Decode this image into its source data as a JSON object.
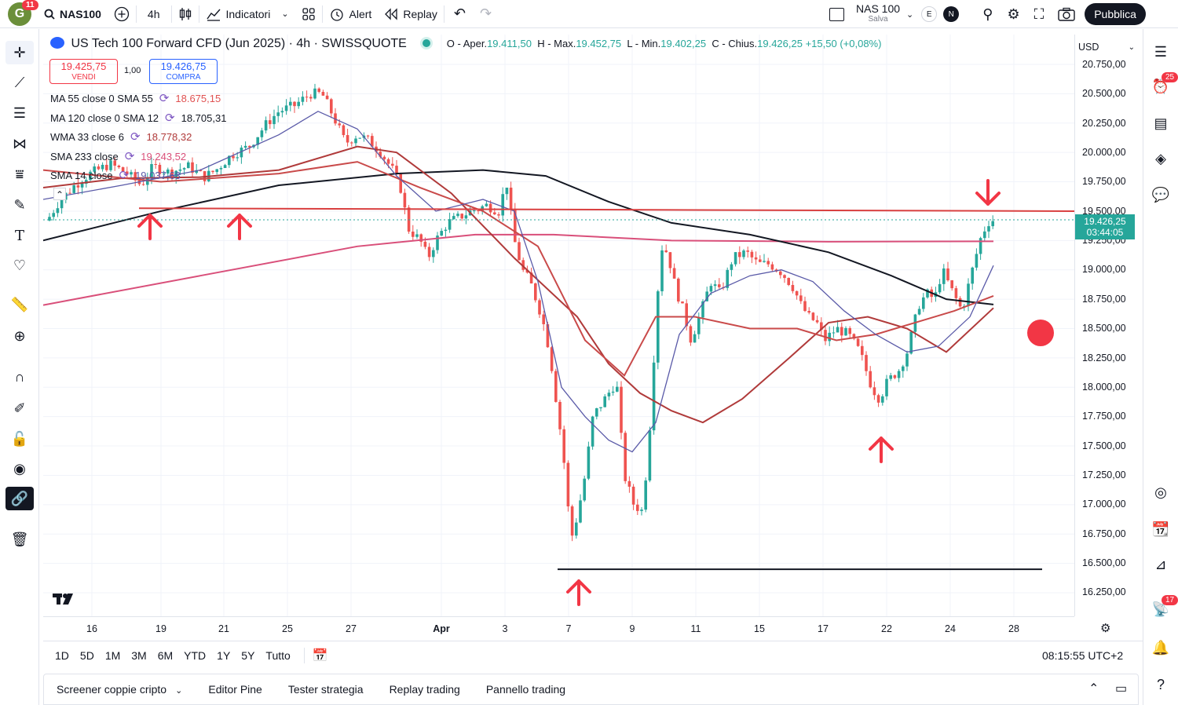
{
  "topbar": {
    "avatar_letter": "G",
    "avatar_badge": "11",
    "symbol": "NAS100",
    "interval": "4h",
    "indicators_label": "Indicatori",
    "alert_label": "Alert",
    "replay_label": "Replay",
    "layout_name": "NAS 100",
    "layout_sub": "Salva",
    "e_label": "E",
    "n_label": "N",
    "publish_label": "Pubblica"
  },
  "legend": {
    "title": "US Tech 100 Forward CFD (Jun 2025) · 4h · SWISSQUOTE",
    "o_label": "O - Aper.",
    "o_val": "19.411,50",
    "h_label": "H - Max.",
    "h_val": "19.452,75",
    "l_label": "L - Min.",
    "l_val": "19.402,25",
    "c_label": "C - Chius.",
    "c_val": "19.426,25",
    "change": "+15,50 (+0,08%)"
  },
  "trade": {
    "sell_price": "19.425,75",
    "sell_label": "VENDI",
    "qty": "1,00",
    "buy_price": "19.426,75",
    "buy_label": "COMPRA"
  },
  "indicators": [
    {
      "name": "MA 55 close 0 SMA 55",
      "value": "18.675,15",
      "color": "#e05252"
    },
    {
      "name": "MA 120 close 0 SMA 12",
      "value": "18.705,31",
      "color": "#131722"
    },
    {
      "name": "WMA 33 close 6",
      "value": "18.778,32",
      "color": "#b03a3a"
    },
    {
      "name": "SMA 233 close",
      "value": "19.243,52",
      "color": "#d94f7a"
    },
    {
      "name": "SMA 14 close",
      "value": "19.037,63",
      "color": "#5a5aa8"
    }
  ],
  "price_axis": {
    "currency": "USD",
    "labels": [
      "20.750,00",
      "20.500,00",
      "20.250,00",
      "20.000,00",
      "19.750,00",
      "19.500,00",
      "19.250,00",
      "19.000,00",
      "18.750,00",
      "18.500,00",
      "18.250,00",
      "18.000,00",
      "17.750,00",
      "17.500,00",
      "17.250,00",
      "17.000,00",
      "16.750,00",
      "16.500,00",
      "16.250,00"
    ],
    "last_price": "19.426,25",
    "countdown": "03:44:05"
  },
  "time_axis": {
    "labels": [
      "16",
      "19",
      "21",
      "25",
      "27",
      "Apr",
      "3",
      "7",
      "9",
      "11",
      "15",
      "17",
      "22",
      "24",
      "28"
    ]
  },
  "ranges": [
    "1D",
    "5D",
    "1M",
    "3M",
    "6M",
    "YTD",
    "1Y",
    "5Y",
    "Tutto"
  ],
  "clock": "08:15:55 UTC+2",
  "bottom_tabs": [
    "Screener coppie cripto",
    "Editor Pine",
    "Tester strategia",
    "Replay trading",
    "Pannello trading"
  ],
  "right_badges": {
    "alerts": "25",
    "news": "17"
  },
  "colors": {
    "up": "#26a69a",
    "down": "#ef5350",
    "accent": "#2962ff",
    "annotation": "#f23645"
  }
}
